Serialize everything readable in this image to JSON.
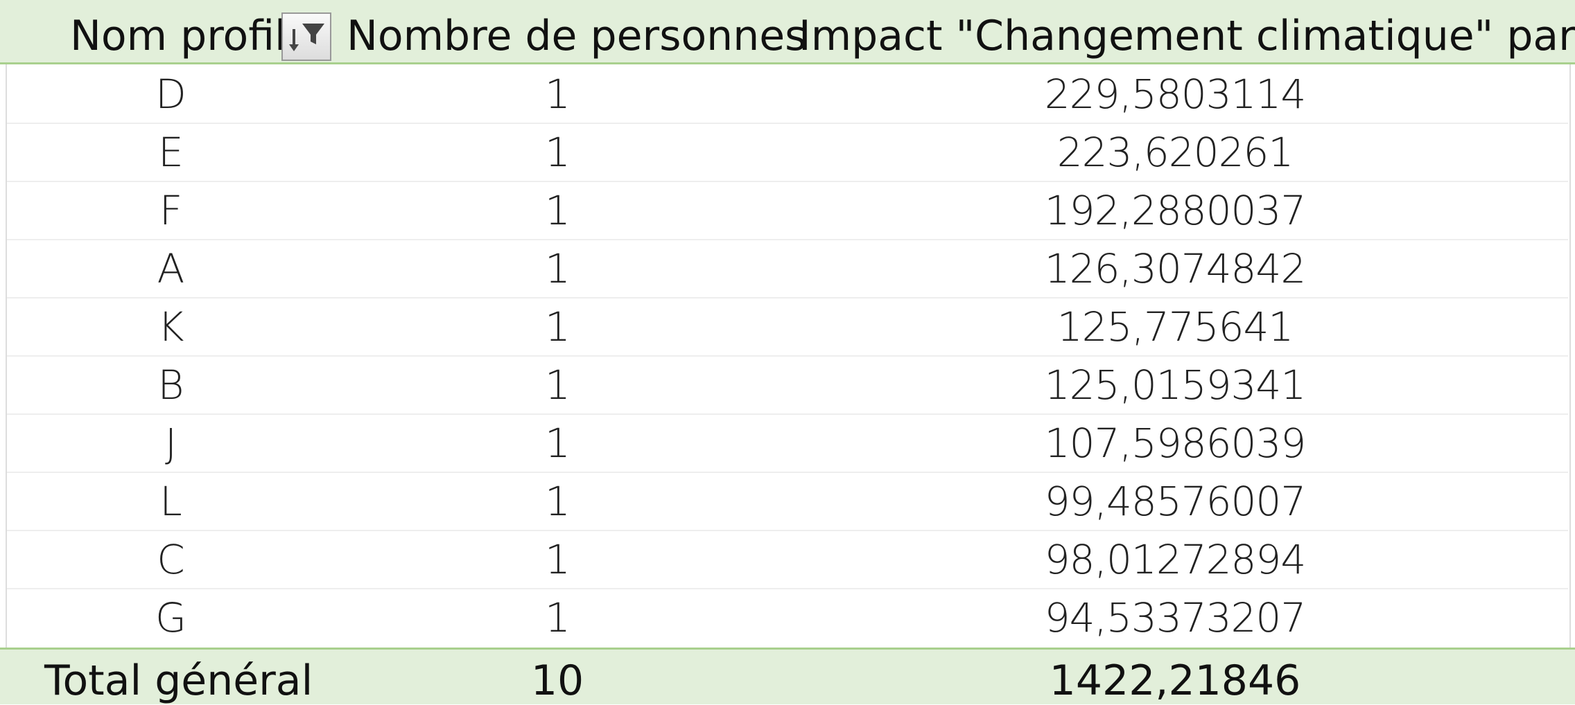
{
  "table": {
    "header": [
      "Nom profil",
      "Nombre de personnes",
      "Impact \"Changement climatique\" par an"
    ],
    "rows": [
      [
        "D",
        "1",
        "229,5803114"
      ],
      [
        "E",
        "1",
        "223,620261"
      ],
      [
        "F",
        "1",
        "192,2880037"
      ],
      [
        "A",
        "1",
        "126,3074842"
      ],
      [
        "K",
        "1",
        "125,775641"
      ],
      [
        "B",
        "1",
        "125,0159341"
      ],
      [
        "J",
        "1",
        "107,5986039"
      ],
      [
        "L",
        "1",
        "99,48576007"
      ],
      [
        "C",
        "1",
        "98,01272894"
      ],
      [
        "G",
        "1",
        "94,53373207"
      ]
    ],
    "total": [
      "Total général",
      "10",
      "1422,21846"
    ]
  }
}
